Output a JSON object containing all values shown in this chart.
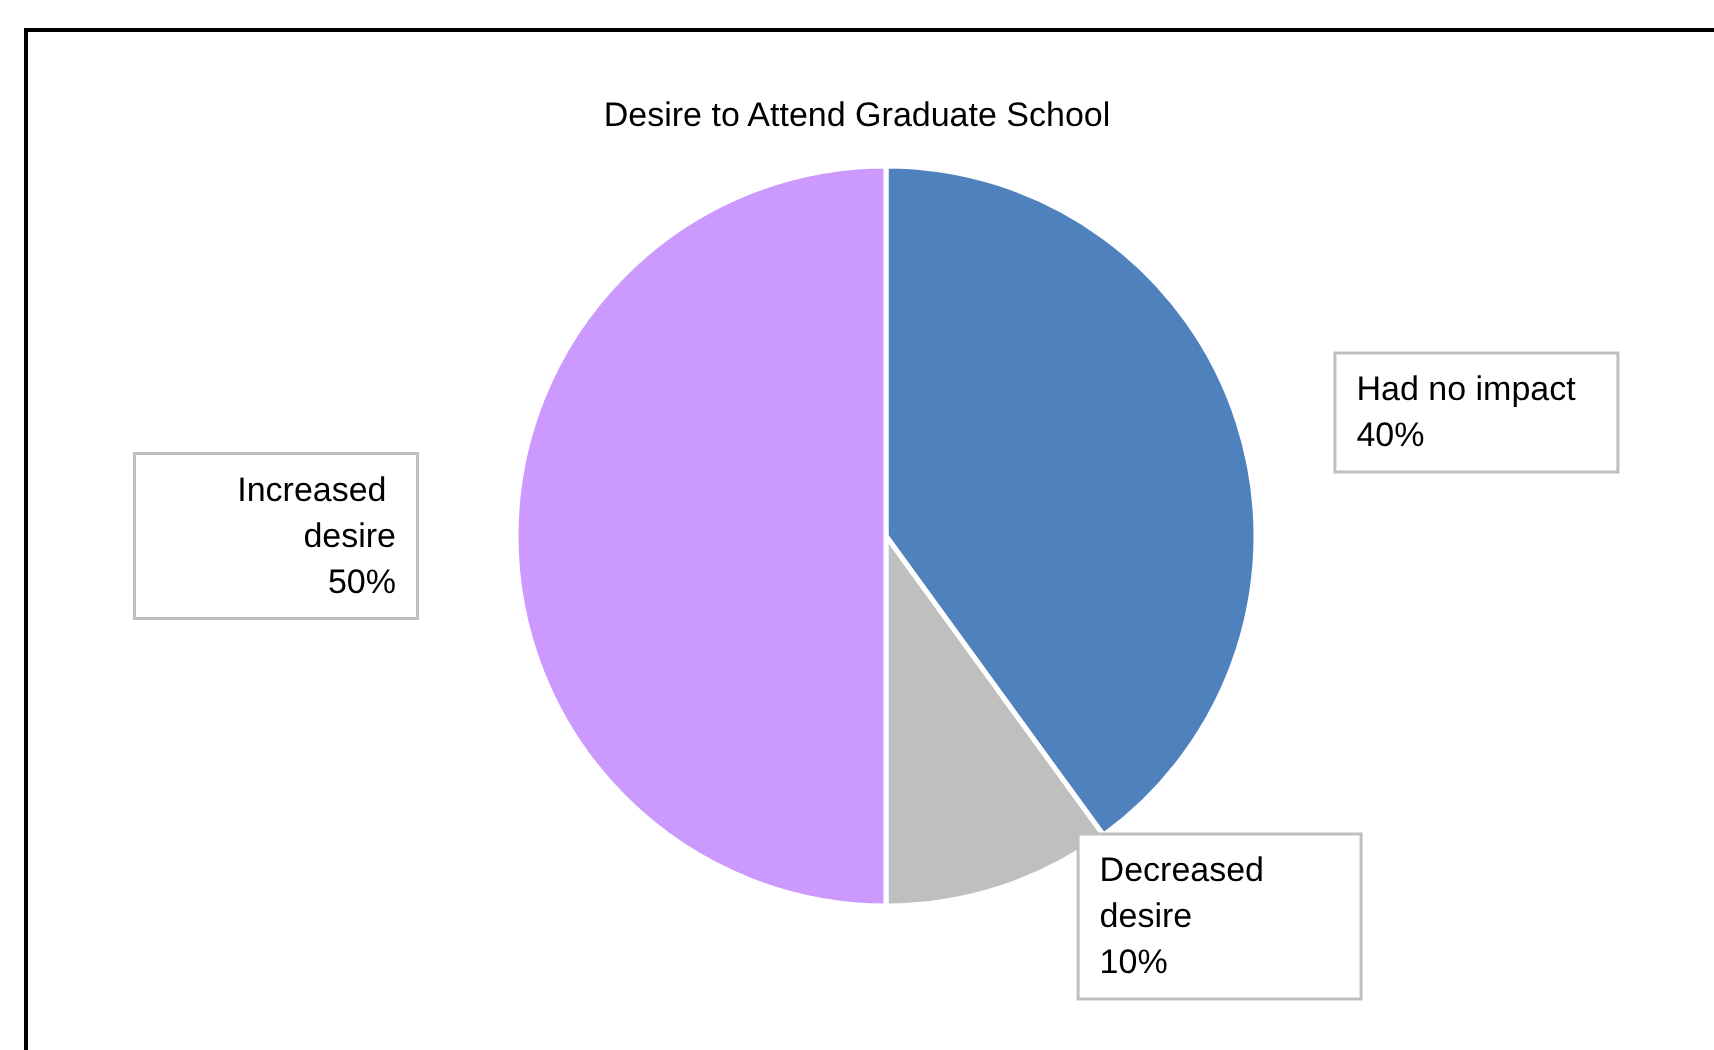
{
  "chart_data": {
    "type": "pie",
    "title": "Desire to Attend Graduate School",
    "categories": [
      "Had no impact",
      "Decreased desire",
      "Increased desire"
    ],
    "values": [
      40,
      10,
      50
    ],
    "colors": [
      "#4f81bd",
      "#bfbfbf",
      "#cc99ff"
    ],
    "value_labels": [
      "40%",
      "10%",
      "50%"
    ],
    "legend": false
  }
}
